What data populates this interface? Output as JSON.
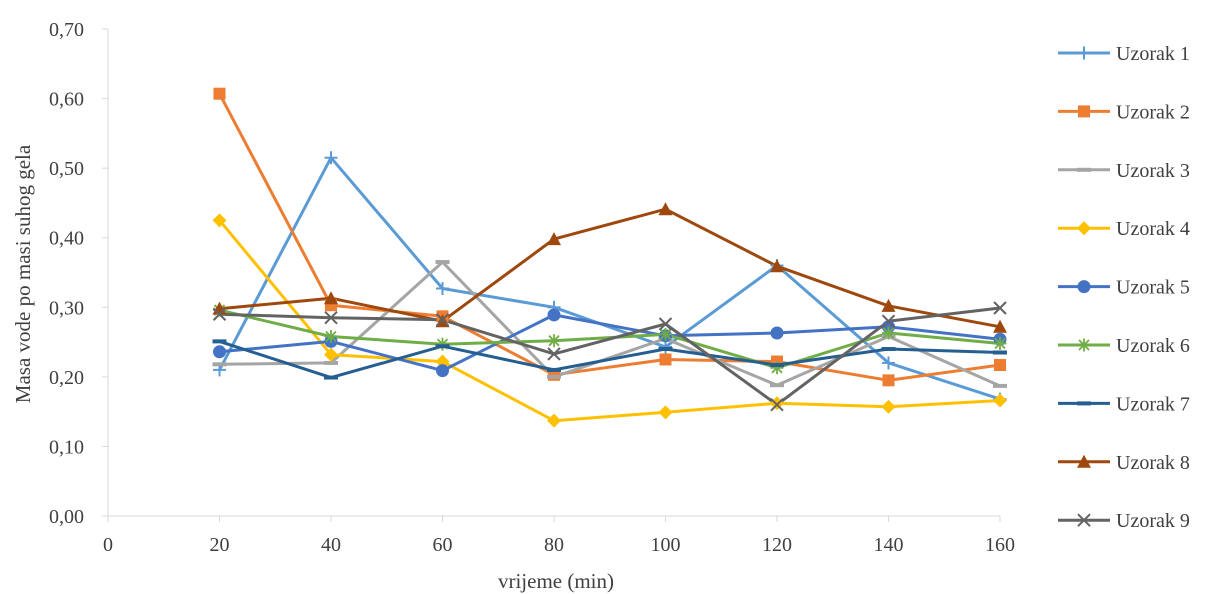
{
  "chart_data": {
    "type": "line",
    "title": "",
    "xlabel": "vrijeme (min)",
    "ylabel": "Masa vode po masi suhog gela",
    "xlim": [
      0,
      160
    ],
    "ylim": [
      0,
      0.7
    ],
    "x_ticks": [
      0,
      20,
      40,
      60,
      80,
      100,
      120,
      140,
      160
    ],
    "x_tick_labels": [
      "0",
      "20",
      "40",
      "60",
      "80",
      "100",
      "120",
      "140",
      "160"
    ],
    "y_ticks": [
      0,
      0.1,
      0.2,
      0.3,
      0.4,
      0.5,
      0.6,
      0.7
    ],
    "y_tick_labels": [
      "0,00",
      "0,10",
      "0,20",
      "0,30",
      "0,40",
      "0,50",
      "0,60",
      "0,70"
    ],
    "grid": false,
    "legend_position": "right",
    "x": [
      20,
      40,
      60,
      80,
      100,
      120,
      140,
      160
    ],
    "series": [
      {
        "name": "Uzorak 1",
        "color": "#5b9bd5",
        "marker": "plus",
        "values": [
          0.21,
          0.515,
          0.327,
          0.3,
          0.243,
          0.36,
          0.22,
          0.168
        ]
      },
      {
        "name": "Uzorak 2",
        "color": "#ed7d31",
        "marker": "square",
        "values": [
          0.607,
          0.303,
          0.287,
          0.203,
          0.225,
          0.222,
          0.195,
          0.217
        ]
      },
      {
        "name": "Uzorak 3",
        "color": "#a5a5a5",
        "marker": "dash",
        "values": [
          0.218,
          0.22,
          0.365,
          0.2,
          0.255,
          0.188,
          0.258,
          0.187
        ]
      },
      {
        "name": "Uzorak 4",
        "color": "#ffc000",
        "marker": "diamond",
        "values": [
          0.425,
          0.232,
          0.222,
          0.137,
          0.149,
          0.162,
          0.157,
          0.166
        ]
      },
      {
        "name": "Uzorak 5",
        "color": "#4472c4",
        "marker": "circle",
        "values": [
          0.236,
          0.251,
          0.209,
          0.289,
          0.259,
          0.263,
          0.272,
          0.254
        ]
      },
      {
        "name": "Uzorak 6",
        "color": "#70ad47",
        "marker": "star",
        "values": [
          0.296,
          0.258,
          0.247,
          0.252,
          0.261,
          0.213,
          0.263,
          0.248
        ]
      },
      {
        "name": "Uzorak 7",
        "color": "#255e91",
        "marker": "dash",
        "values": [
          0.251,
          0.199,
          0.244,
          0.21,
          0.24,
          0.217,
          0.24,
          0.235
        ]
      },
      {
        "name": "Uzorak 8",
        "color": "#9e480e",
        "marker": "triangle",
        "values": [
          0.298,
          0.313,
          0.28,
          0.398,
          0.441,
          0.359,
          0.302,
          0.272
        ]
      },
      {
        "name": "Uzorak 9",
        "color": "#636363",
        "marker": "x",
        "values": [
          0.29,
          0.285,
          0.282,
          0.233,
          0.276,
          0.16,
          0.28,
          0.299
        ]
      }
    ]
  }
}
